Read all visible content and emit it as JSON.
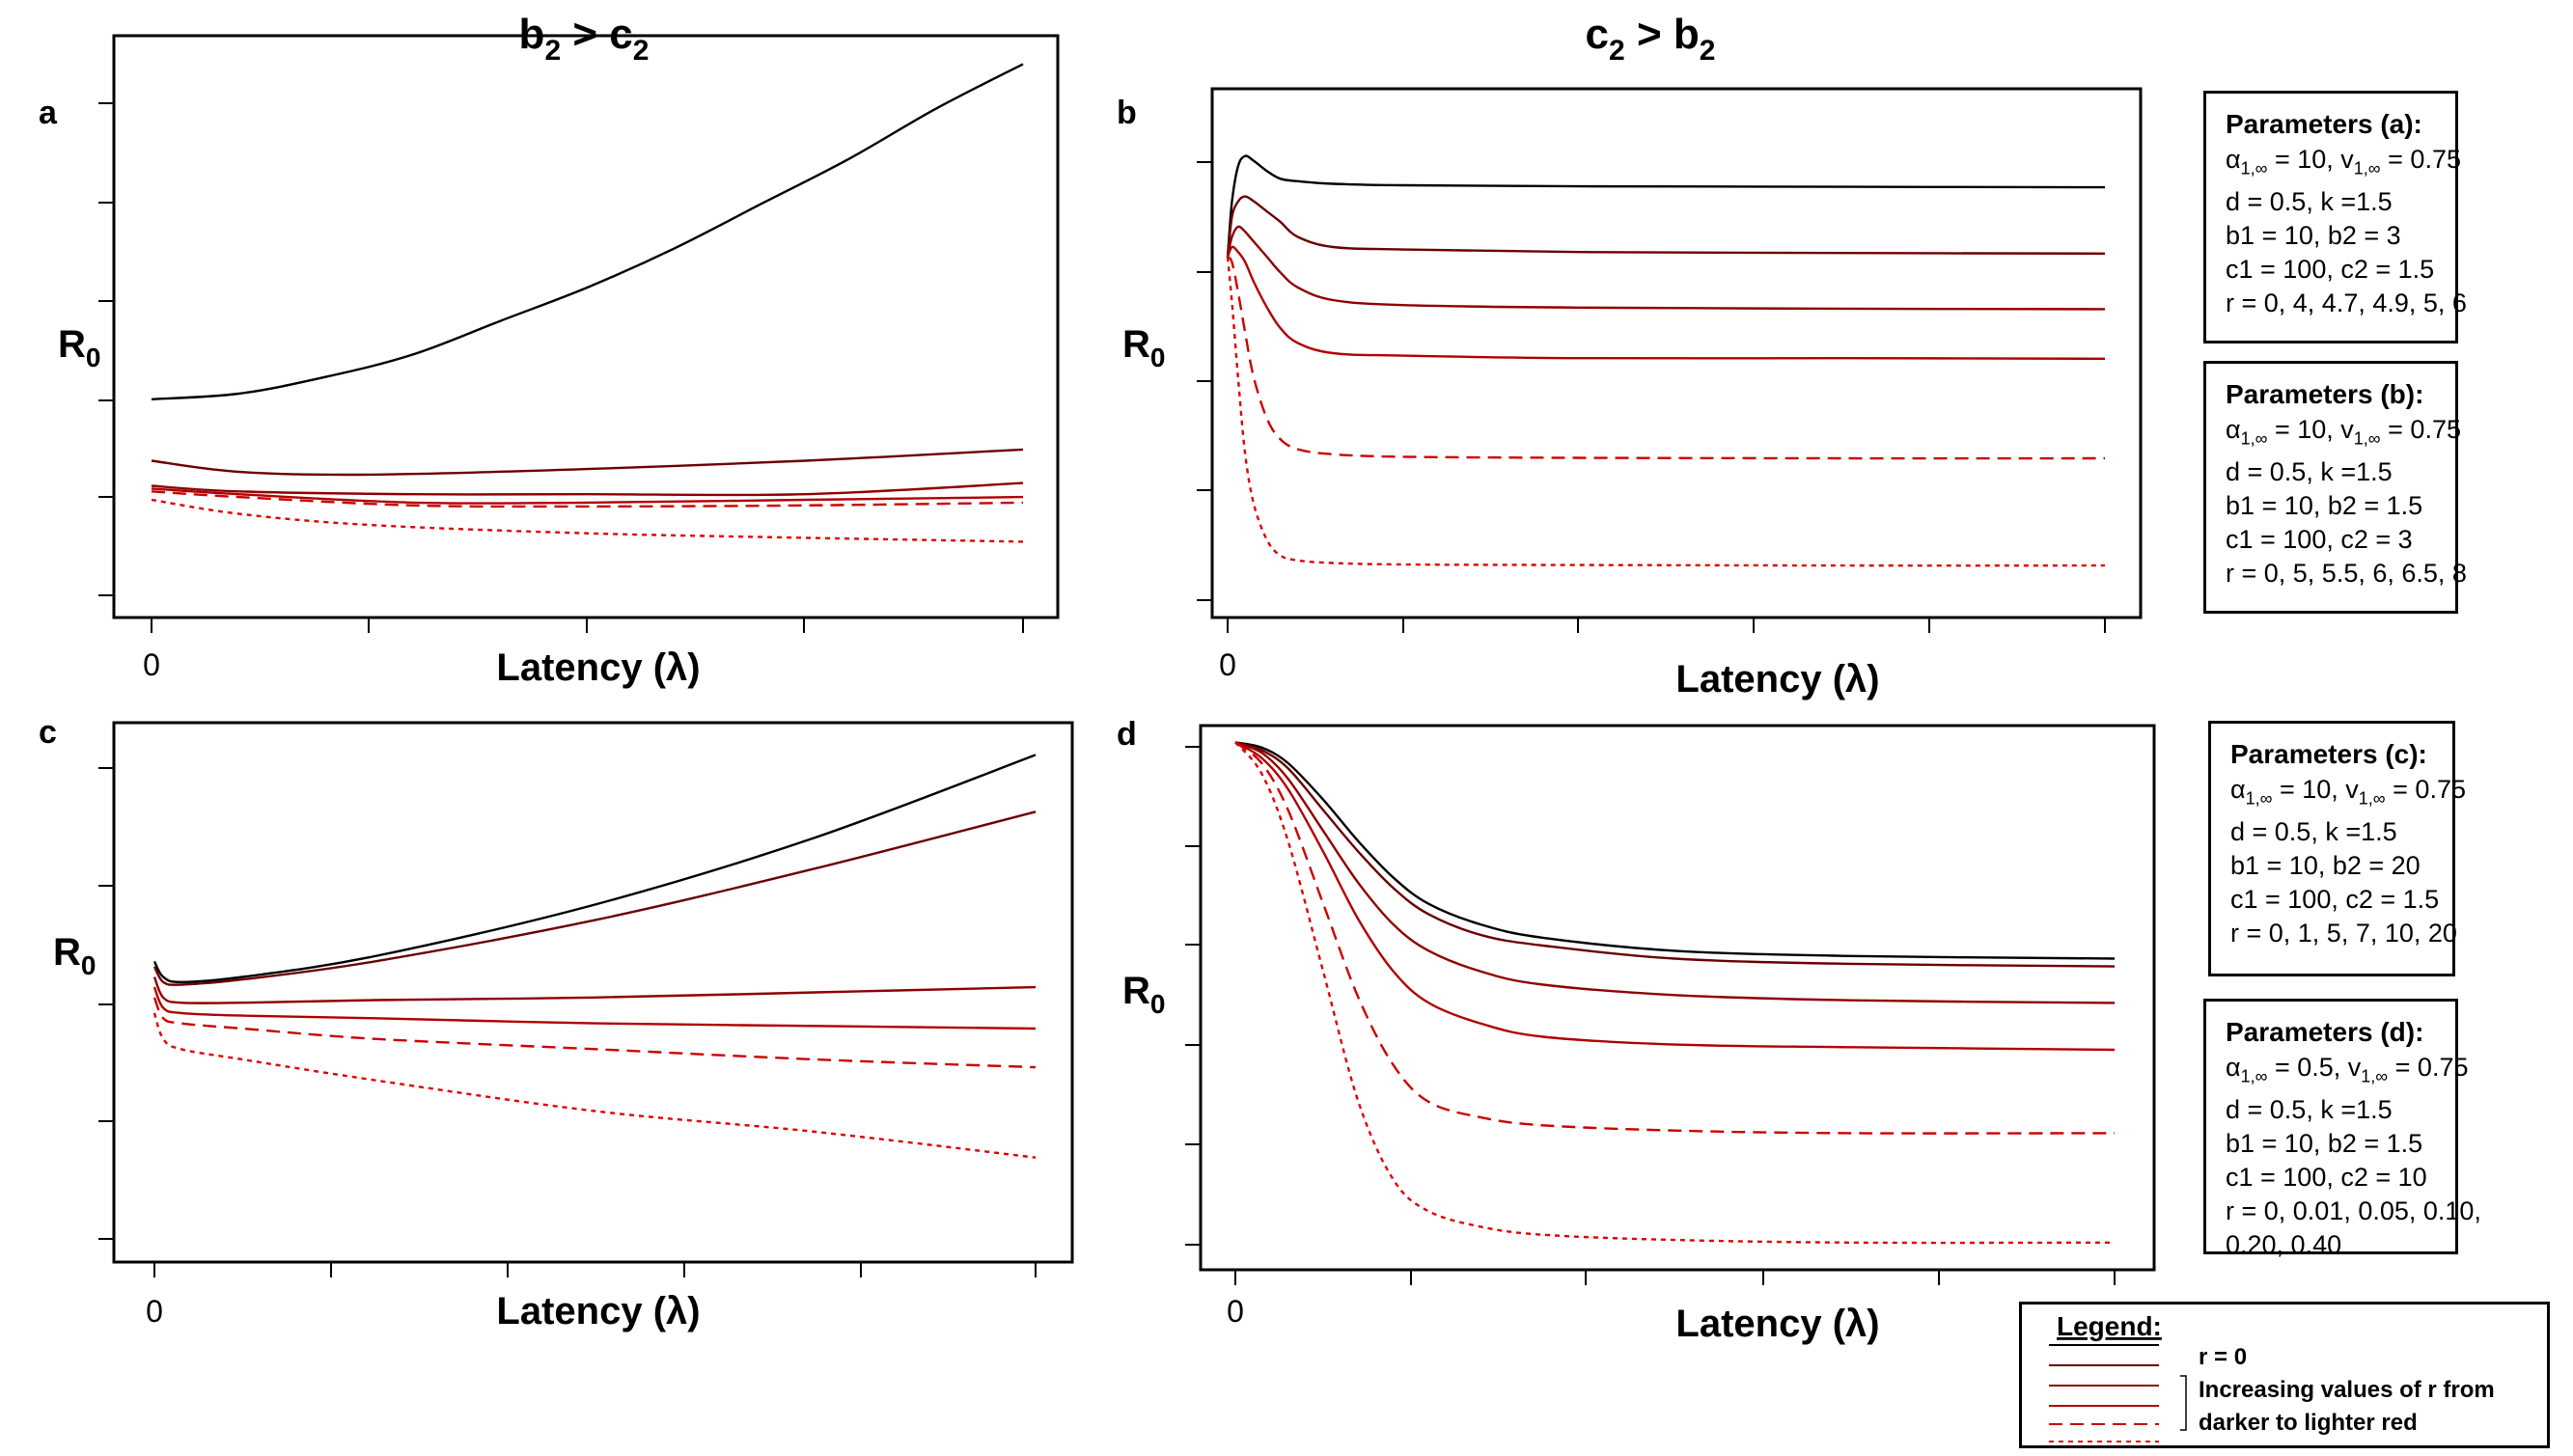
{
  "column_titles": {
    "left": {
      "base": "b",
      "sub": "2",
      "op": " > ",
      "base2": "c",
      "sub2": "2"
    },
    "right": {
      "base": "c",
      "sub": "2",
      "op": " > ",
      "base2": "b",
      "sub2": "2"
    }
  },
  "chart_data": [
    {
      "panel": "a",
      "type": "line",
      "xlabel": "Latency (λ)",
      "ylabel": "R0",
      "x_tick_label": "0",
      "xlim": [
        0,
        1
      ],
      "ylim": [
        0,
        1
      ],
      "note": "normalized data values (y axis is unlabeled)",
      "series": [
        {
          "style": "solid",
          "color": "#000000",
          "x": [
            0,
            0.1,
            0.2,
            0.3,
            0.4,
            0.5,
            0.6,
            0.7,
            0.8,
            0.9,
            1.0
          ],
          "y": [
            0.37,
            0.38,
            0.41,
            0.45,
            0.51,
            0.57,
            0.64,
            0.72,
            0.8,
            0.89,
            0.97
          ]
        },
        {
          "style": "solid",
          "color": "#6b0000",
          "x": [
            0,
            0.1,
            0.25,
            0.5,
            0.75,
            1.0
          ],
          "y": [
            0.26,
            0.24,
            0.235,
            0.245,
            0.26,
            0.28
          ]
        },
        {
          "style": "solid",
          "color": "#8f0000",
          "x": [
            0,
            0.1,
            0.3,
            0.5,
            0.75,
            1.0
          ],
          "y": [
            0.215,
            0.205,
            0.2,
            0.2,
            0.2,
            0.22
          ]
        },
        {
          "style": "solid",
          "color": "#b00000",
          "x": [
            0,
            0.1,
            0.3,
            0.5,
            0.75,
            1.0
          ],
          "y": [
            0.21,
            0.2,
            0.185,
            0.185,
            0.19,
            0.195
          ]
        },
        {
          "style": "dashed",
          "color": "#cc0000",
          "x": [
            0,
            0.1,
            0.3,
            0.5,
            0.75,
            1.0
          ],
          "y": [
            0.205,
            0.195,
            0.18,
            0.178,
            0.18,
            0.185
          ]
        },
        {
          "style": "dotted",
          "color": "#e00000",
          "x": [
            0,
            0.1,
            0.25,
            0.5,
            0.75,
            1.0
          ],
          "y": [
            0.19,
            0.165,
            0.145,
            0.13,
            0.122,
            0.115
          ]
        }
      ]
    },
    {
      "panel": "b",
      "type": "line",
      "xlabel": "Latency (λ)",
      "ylabel": "R0",
      "x_tick_label": "0",
      "xlim": [
        0,
        1
      ],
      "ylim": [
        0,
        1
      ],
      "note": "normalized data values (y axis is unlabeled)",
      "series": [
        {
          "style": "solid",
          "color": "#000000",
          "x": [
            0,
            0.005,
            0.012,
            0.02,
            0.03,
            0.045,
            0.06,
            0.08,
            0.12,
            0.2,
            0.4,
            0.7,
            1.0
          ],
          "y": [
            0.69,
            0.8,
            0.87,
            0.89,
            0.88,
            0.86,
            0.845,
            0.84,
            0.835,
            0.832,
            0.83,
            0.829,
            0.828
          ]
        },
        {
          "style": "solid",
          "color": "#6b0000",
          "x": [
            0,
            0.005,
            0.012,
            0.02,
            0.03,
            0.045,
            0.06,
            0.08,
            0.12,
            0.2,
            0.4,
            0.7,
            1.0
          ],
          "y": [
            0.69,
            0.77,
            0.8,
            0.81,
            0.8,
            0.78,
            0.76,
            0.73,
            0.71,
            0.705,
            0.7,
            0.698,
            0.697
          ]
        },
        {
          "style": "solid",
          "color": "#8f0000",
          "x": [
            0,
            0.005,
            0.012,
            0.02,
            0.03,
            0.045,
            0.06,
            0.08,
            0.12,
            0.2,
            0.4,
            0.7,
            1.0
          ],
          "y": [
            0.69,
            0.73,
            0.75,
            0.74,
            0.72,
            0.69,
            0.66,
            0.63,
            0.605,
            0.595,
            0.59,
            0.588,
            0.587
          ]
        },
        {
          "style": "solid",
          "color": "#b00000",
          "x": [
            0,
            0.005,
            0.012,
            0.02,
            0.03,
            0.045,
            0.06,
            0.08,
            0.12,
            0.2,
            0.4,
            0.7,
            1.0
          ],
          "y": [
            0.69,
            0.71,
            0.7,
            0.68,
            0.64,
            0.59,
            0.55,
            0.52,
            0.5,
            0.495,
            0.49,
            0.49,
            0.489
          ]
        },
        {
          "style": "dashed",
          "color": "#cc0000",
          "x": [
            0,
            0.005,
            0.012,
            0.02,
            0.03,
            0.045,
            0.06,
            0.08,
            0.12,
            0.2,
            0.4,
            0.7,
            1.0
          ],
          "y": [
            0.69,
            0.68,
            0.62,
            0.54,
            0.45,
            0.37,
            0.33,
            0.31,
            0.3,
            0.295,
            0.293,
            0.292,
            0.292
          ]
        },
        {
          "style": "dotted",
          "color": "#e00000",
          "x": [
            0,
            0.005,
            0.012,
            0.02,
            0.03,
            0.045,
            0.06,
            0.08,
            0.12,
            0.2,
            0.4,
            0.7,
            1.0
          ],
          "y": [
            0.69,
            0.6,
            0.45,
            0.3,
            0.2,
            0.13,
            0.1,
            0.09,
            0.085,
            0.082,
            0.081,
            0.08,
            0.08
          ]
        }
      ]
    },
    {
      "panel": "c",
      "type": "line",
      "xlabel": "Latency (λ)",
      "ylabel": "R0",
      "x_tick_label": "0",
      "xlim": [
        0,
        1
      ],
      "ylim": [
        0,
        1
      ],
      "note": "normalized data values (y axis is unlabeled)",
      "series": [
        {
          "style": "solid",
          "color": "#000000",
          "x": [
            0,
            0.01,
            0.03,
            0.1,
            0.25,
            0.5,
            0.75,
            1.0
          ],
          "y": [
            0.56,
            0.53,
            0.52,
            0.53,
            0.57,
            0.67,
            0.8,
            0.96
          ]
        },
        {
          "style": "solid",
          "color": "#6b0000",
          "x": [
            0,
            0.01,
            0.03,
            0.1,
            0.25,
            0.5,
            0.75,
            1.0
          ],
          "y": [
            0.55,
            0.52,
            0.515,
            0.525,
            0.56,
            0.64,
            0.74,
            0.85
          ]
        },
        {
          "style": "solid",
          "color": "#8f0000",
          "x": [
            0,
            0.01,
            0.03,
            0.1,
            0.25,
            0.5,
            0.75,
            1.0
          ],
          "y": [
            0.53,
            0.49,
            0.48,
            0.48,
            0.485,
            0.49,
            0.5,
            0.51
          ]
        },
        {
          "style": "solid",
          "color": "#b00000",
          "x": [
            0,
            0.01,
            0.03,
            0.1,
            0.25,
            0.5,
            0.75,
            1.0
          ],
          "y": [
            0.51,
            0.47,
            0.46,
            0.455,
            0.45,
            0.44,
            0.435,
            0.43
          ]
        },
        {
          "style": "dashed",
          "color": "#cc0000",
          "x": [
            0,
            0.01,
            0.03,
            0.1,
            0.25,
            0.5,
            0.75,
            1.0
          ],
          "y": [
            0.49,
            0.45,
            0.44,
            0.43,
            0.41,
            0.39,
            0.37,
            0.355
          ]
        },
        {
          "style": "dotted",
          "color": "#e00000",
          "x": [
            0,
            0.01,
            0.03,
            0.1,
            0.25,
            0.5,
            0.75,
            1.0
          ],
          "y": [
            0.46,
            0.41,
            0.39,
            0.37,
            0.33,
            0.27,
            0.23,
            0.18
          ]
        }
      ]
    },
    {
      "panel": "d",
      "type": "line",
      "xlabel": "Latency (λ)",
      "ylabel": "R0",
      "x_tick_label": "0",
      "xlim": [
        0,
        1
      ],
      "ylim": [
        0,
        1
      ],
      "note": "normalized data values (y axis is unlabeled)",
      "series": [
        {
          "style": "solid",
          "color": "#000000",
          "x": [
            0,
            0.03,
            0.06,
            0.1,
            0.14,
            0.18,
            0.22,
            0.28,
            0.35,
            0.5,
            0.7,
            1.0
          ],
          "y": [
            0.99,
            0.98,
            0.95,
            0.88,
            0.8,
            0.73,
            0.68,
            0.64,
            0.615,
            0.59,
            0.58,
            0.575
          ]
        },
        {
          "style": "solid",
          "color": "#6b0000",
          "x": [
            0,
            0.03,
            0.06,
            0.1,
            0.14,
            0.18,
            0.22,
            0.28,
            0.35,
            0.5,
            0.7,
            1.0
          ],
          "y": [
            0.99,
            0.975,
            0.94,
            0.86,
            0.78,
            0.71,
            0.66,
            0.62,
            0.6,
            0.575,
            0.565,
            0.56
          ]
        },
        {
          "style": "solid",
          "color": "#8f0000",
          "x": [
            0,
            0.03,
            0.06,
            0.1,
            0.14,
            0.18,
            0.22,
            0.28,
            0.35,
            0.5,
            0.7,
            1.0
          ],
          "y": [
            0.99,
            0.97,
            0.92,
            0.82,
            0.72,
            0.64,
            0.59,
            0.55,
            0.525,
            0.505,
            0.495,
            0.49
          ]
        },
        {
          "style": "solid",
          "color": "#b00000",
          "x": [
            0,
            0.03,
            0.06,
            0.1,
            0.14,
            0.18,
            0.22,
            0.28,
            0.35,
            0.5,
            0.7,
            1.0
          ],
          "y": [
            0.99,
            0.96,
            0.9,
            0.78,
            0.65,
            0.55,
            0.49,
            0.45,
            0.425,
            0.41,
            0.405,
            0.4
          ]
        },
        {
          "style": "dashed",
          "color": "#cc0000",
          "x": [
            0,
            0.03,
            0.06,
            0.1,
            0.14,
            0.18,
            0.22,
            0.28,
            0.35,
            0.5,
            0.7,
            1.0
          ],
          "y": [
            0.99,
            0.95,
            0.86,
            0.68,
            0.5,
            0.37,
            0.3,
            0.27,
            0.255,
            0.245,
            0.24,
            0.24
          ]
        },
        {
          "style": "dotted",
          "color": "#e00000",
          "x": [
            0,
            0.03,
            0.06,
            0.1,
            0.14,
            0.18,
            0.22,
            0.28,
            0.35,
            0.5,
            0.7,
            1.0
          ],
          "y": [
            0.99,
            0.93,
            0.8,
            0.55,
            0.3,
            0.15,
            0.09,
            0.06,
            0.045,
            0.035,
            0.03,
            0.03
          ]
        }
      ]
    }
  ],
  "parameter_boxes": [
    {
      "title": "Parameters (a):",
      "alpha_val": "10",
      "v_val": "0.75",
      "lines": [
        "d = 0.5, k =1.5",
        "b1 = 10, b2 = 3",
        "c1 = 100, c2 = 1.5",
        "r = 0, 4, 4.7, 4.9, 5, 6"
      ]
    },
    {
      "title": "Parameters (b):",
      "alpha_val": "10",
      "v_val": "0.75",
      "lines": [
        "d = 0.5, k =1.5",
        "b1 = 10, b2 = 1.5",
        "c1 = 100, c2 = 3",
        "r = 0, 5, 5.5, 6, 6.5, 8"
      ]
    },
    {
      "title": "Parameters (c):",
      "alpha_val": "10",
      "v_val": "0.75",
      "lines": [
        "d = 0.5, k =1.5",
        "b1 = 10, b2 = 20",
        "c1 = 100, c2 = 1.5",
        "r = 0, 1, 5, 7, 10, 20"
      ]
    },
    {
      "title": "Parameters (d):",
      "alpha_val": "0.5",
      "v_val": "0.75",
      "lines": [
        "d = 0.5, k =1.5",
        "b1 = 10, b2 = 1.5",
        "c1 = 100, c2 = 10",
        "r = 0, 0.01, 0.05, 0.10,",
        "0.20, 0.40"
      ]
    }
  ],
  "legend": {
    "title": "Legend:",
    "entries": [
      {
        "style": "solid",
        "color": "#000000"
      },
      {
        "style": "solid",
        "color": "#6b0000"
      },
      {
        "style": "solid",
        "color": "#8f0000"
      },
      {
        "style": "solid",
        "color": "#b00000"
      },
      {
        "style": "dashed",
        "color": "#cc0000"
      },
      {
        "style": "dotted",
        "color": "#e00000"
      }
    ],
    "text_r0": "r = 0",
    "text_increasing_1": "Increasing values of r from",
    "text_increasing_2": "darker to lighter red"
  }
}
